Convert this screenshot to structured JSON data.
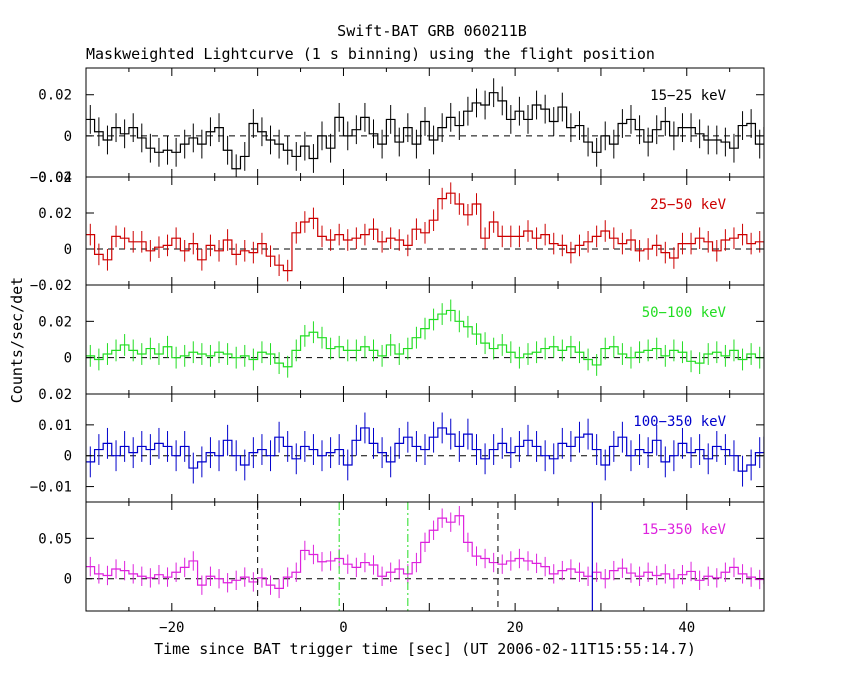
{
  "header": {
    "title": "Swift-BAT GRB 060211B",
    "subtitle": "Maskweighted Lightcurve (1 s binning) using the flight position"
  },
  "axes": {
    "xlabel": "Time since BAT trigger time [sec] (UT 2006-02-11T15:55:14.7)",
    "ylabel": "Counts/sec/det"
  },
  "chart_data": {
    "type": "line",
    "step": true,
    "binning_s": 1,
    "xlim": [
      -30,
      49
    ],
    "xticks": [
      -20,
      0,
      20,
      40
    ],
    "panels": [
      {
        "name": "15−25 keV",
        "color": "#000000",
        "ylim": [
          -0.02,
          0.033
        ],
        "yticks": [
          0.02,
          0,
          -0.02
        ],
        "ytick_labels": [
          "0.02",
          "0",
          "−0.02"
        ],
        "values": [
          0.008,
          0.002,
          -0.002,
          0.004,
          0.001,
          0.004,
          -0.001,
          -0.006,
          -0.008,
          -0.007,
          -0.008,
          -0.004,
          -0.001,
          -0.004,
          0.002,
          0.004,
          -0.007,
          -0.016,
          -0.01,
          0.006,
          0.002,
          -0.002,
          -0.004,
          -0.007,
          -0.01,
          -0.005,
          -0.011,
          0.0,
          -0.006,
          0.009,
          0.0,
          0.003,
          0.009,
          0.001,
          -0.004,
          0.008,
          -0.003,
          0.004,
          -0.004,
          0.007,
          -0.002,
          0.004,
          0.009,
          0.005,
          0.012,
          0.016,
          0.015,
          0.021,
          0.017,
          0.008,
          0.012,
          0.008,
          0.015,
          0.013,
          0.007,
          0.014,
          0.004,
          0.005,
          -0.003,
          -0.008,
          0.0,
          -0.004,
          0.006,
          0.008,
          0.003,
          -0.003,
          0.003,
          0.007,
          0.0,
          0.004,
          0.004,
          0.001,
          -0.002,
          -0.002,
          -0.003,
          -0.006,
          0.005,
          0.006,
          -0.004,
          0.004
        ],
        "errors": 0.007
      },
      {
        "name": "25−50 keV",
        "color": "#cc0000",
        "ylim": [
          -0.02,
          0.04
        ],
        "yticks": [
          0.04,
          0.02,
          0,
          -0.02
        ],
        "ytick_labels": [
          "0.04",
          "0.02",
          "0",
          "−0.02"
        ],
        "values": [
          0.008,
          -0.003,
          -0.006,
          0.007,
          0.006,
          0.004,
          0.004,
          -0.001,
          0.001,
          0.002,
          0.006,
          -0.001,
          0.003,
          -0.006,
          0.002,
          -0.001,
          0.005,
          -0.003,
          -0.001,
          -0.002,
          0.003,
          -0.004,
          -0.009,
          -0.012,
          0.009,
          0.015,
          0.017,
          0.007,
          0.005,
          0.008,
          0.005,
          0.006,
          0.008,
          0.011,
          0.004,
          0.006,
          0.005,
          0.002,
          0.011,
          0.009,
          0.016,
          0.028,
          0.031,
          0.025,
          0.019,
          0.025,
          0.006,
          0.015,
          0.007,
          0.007,
          0.007,
          0.01,
          0.006,
          0.008,
          0.003,
          0.002,
          -0.002,
          0.002,
          0.004,
          0.007,
          0.01,
          0.006,
          0.003,
          0.005,
          -0.001,
          0.0,
          0.002,
          -0.002,
          -0.005,
          0.003,
          0.003,
          0.006,
          0.004,
          -0.001,
          0.005,
          0.006,
          0.008,
          0.003,
          0.004,
          0.001
        ],
        "errors": 0.006
      },
      {
        "name": "50−100 keV",
        "color": "#22dd22",
        "ylim": [
          -0.02,
          0.04
        ],
        "yticks": [
          0.02,
          0
        ],
        "ytick_labels": [
          "0.02",
          "0"
        ],
        "values": [
          0.001,
          -0.001,
          0.002,
          0.004,
          0.007,
          0.004,
          0.002,
          0.005,
          0.002,
          0.006,
          0.0,
          0.001,
          0.003,
          0.002,
          0.001,
          0.003,
          0.002,
          0.0,
          0.001,
          -0.001,
          0.003,
          0.002,
          -0.003,
          -0.005,
          0.004,
          0.012,
          0.014,
          0.011,
          0.005,
          0.006,
          0.004,
          0.004,
          0.006,
          0.004,
          0.001,
          0.007,
          0.002,
          0.005,
          0.011,
          0.016,
          0.021,
          0.024,
          0.026,
          0.02,
          0.017,
          0.013,
          0.008,
          0.005,
          0.007,
          0.003,
          0.0,
          0.002,
          0.003,
          0.005,
          0.006,
          0.004,
          0.006,
          0.003,
          -0.001,
          -0.004,
          0.005,
          0.006,
          0.002,
          0.0,
          0.003,
          0.004,
          0.005,
          0.001,
          0.004,
          0.003,
          -0.002,
          -0.003,
          0.002,
          0.003,
          0.001,
          0.004,
          -0.001,
          0.002,
          0.0,
          0.003
        ],
        "errors": 0.006
      },
      {
        "name": "100−350 keV",
        "color": "#0000cc",
        "ylim": [
          -0.015,
          0.02
        ],
        "yticks": [
          0.02,
          0.01,
          0,
          -0.01
        ],
        "ytick_labels": [
          "0.02",
          "0.01",
          "0",
          "−0.01"
        ],
        "values": [
          -0.002,
          0.002,
          0.004,
          0.0,
          0.003,
          0.001,
          0.003,
          0.002,
          0.004,
          0.003,
          0.0,
          0.003,
          -0.004,
          -0.002,
          0.001,
          0.0,
          0.005,
          0.0,
          -0.003,
          0.001,
          0.002,
          0.0,
          0.006,
          0.003,
          -0.001,
          0.003,
          0.002,
          0.0,
          0.001,
          0.002,
          -0.003,
          0.005,
          0.009,
          0.004,
          0.001,
          -0.002,
          0.004,
          0.006,
          0.003,
          0.002,
          0.006,
          0.009,
          0.007,
          0.003,
          0.007,
          0.002,
          -0.001,
          0.002,
          0.004,
          0.001,
          0.003,
          0.005,
          0.003,
          0.0,
          -0.001,
          0.004,
          0.003,
          0.006,
          0.007,
          0.002,
          -0.003,
          0.003,
          0.006,
          0.0,
          0.002,
          0.001,
          0.005,
          -0.002,
          0.0,
          0.004,
          0.001,
          0.002,
          -0.001,
          0.003,
          0.002,
          0.0,
          -0.005,
          -0.003,
          0.001,
          0.006
        ],
        "errors": 0.005
      },
      {
        "name": "15−350 keV",
        "color": "#dd22dd",
        "ylim": [
          -0.04,
          0.095
        ],
        "yticks": [
          0.05,
          0
        ],
        "ytick_labels": [
          "0.05",
          "0"
        ],
        "values": [
          0.015,
          0.006,
          0.004,
          0.012,
          0.01,
          0.006,
          0.003,
          0.001,
          0.005,
          0.002,
          0.008,
          0.014,
          0.022,
          -0.008,
          0.003,
          0.0,
          -0.005,
          -0.002,
          0.002,
          -0.004,
          0.001,
          -0.008,
          -0.012,
          0.002,
          0.008,
          0.035,
          0.03,
          0.021,
          0.022,
          0.025,
          0.018,
          0.014,
          0.02,
          0.017,
          0.003,
          0.008,
          0.012,
          0.006,
          0.02,
          0.045,
          0.06,
          0.075,
          0.07,
          0.078,
          0.045,
          0.028,
          0.025,
          0.02,
          0.018,
          0.022,
          0.025,
          0.022,
          0.019,
          0.015,
          0.006,
          0.01,
          0.012,
          0.008,
          0.003,
          0.008,
          0.0,
          0.01,
          0.013,
          0.007,
          0.003,
          0.008,
          0.004,
          0.006,
          0.0,
          0.005,
          0.009,
          -0.002,
          0.003,
          0.001,
          0.008,
          0.014,
          0.006,
          0.002,
          -0.001,
          -0.006
        ],
        "errors": 0.012,
        "dashed_markers_x": [
          -10,
          18
        ],
        "dashdot_markers_x": [
          -0.5,
          7.5
        ],
        "solid_marker_x": 29,
        "solid_marker_color": "#0000cc",
        "dashdot_color": "#22dd22"
      }
    ]
  }
}
